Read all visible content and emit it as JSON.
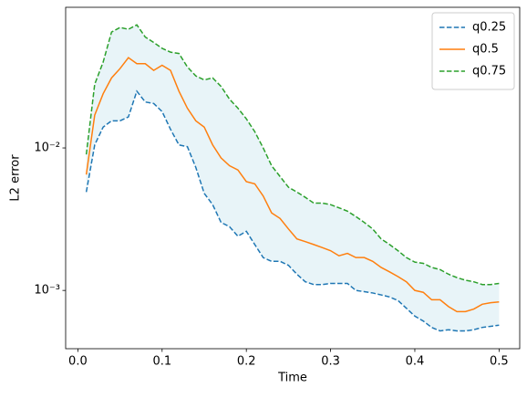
{
  "chart_data": {
    "type": "line",
    "xlabel": "Time",
    "ylabel": "L2 error",
    "x": [
      0.01,
      0.02,
      0.03,
      0.04,
      0.05,
      0.06,
      0.07,
      0.08,
      0.09,
      0.1,
      0.11,
      0.12,
      0.13,
      0.14,
      0.15,
      0.16,
      0.17,
      0.18,
      0.19,
      0.2,
      0.21,
      0.22,
      0.23,
      0.24,
      0.25,
      0.26,
      0.27,
      0.28,
      0.29,
      0.3,
      0.31,
      0.32,
      0.33,
      0.34,
      0.35,
      0.36,
      0.37,
      0.38,
      0.39,
      0.4,
      0.41,
      0.42,
      0.43,
      0.44,
      0.45,
      0.46,
      0.47,
      0.48,
      0.49,
      0.5
    ],
    "series": [
      {
        "name": "q0.25",
        "color": "#1f77b4",
        "linestyle": "dashed",
        "values": [
          0.0049,
          0.0105,
          0.014,
          0.0155,
          0.0155,
          0.0165,
          0.025,
          0.021,
          0.0205,
          0.018,
          0.0135,
          0.0105,
          0.0102,
          0.0073,
          0.0048,
          0.004,
          0.003,
          0.0028,
          0.0024,
          0.0026,
          0.0021,
          0.0017,
          0.0016,
          0.0016,
          0.0015,
          0.0013,
          0.00115,
          0.0011,
          0.0011,
          0.00112,
          0.00112,
          0.00112,
          0.001,
          0.00098,
          0.00096,
          0.00093,
          0.0009,
          0.00085,
          0.00075,
          0.00066,
          0.00061,
          0.00055,
          0.00052,
          0.00053,
          0.00052,
          0.00052,
          0.00053,
          0.00055,
          0.00056,
          0.00057
        ]
      },
      {
        "name": "q0.5",
        "color": "#ff7f0e",
        "linestyle": "solid",
        "values": [
          0.0065,
          0.017,
          0.024,
          0.031,
          0.036,
          0.043,
          0.039,
          0.039,
          0.035,
          0.038,
          0.035,
          0.025,
          0.019,
          0.0155,
          0.014,
          0.0105,
          0.0085,
          0.0075,
          0.007,
          0.0058,
          0.0056,
          0.0046,
          0.0035,
          0.0032,
          0.0027,
          0.0023,
          0.0022,
          0.0021,
          0.002,
          0.0019,
          0.00175,
          0.00182,
          0.0017,
          0.0017,
          0.0016,
          0.00145,
          0.00135,
          0.00125,
          0.00115,
          0.001,
          0.00097,
          0.00086,
          0.00086,
          0.00077,
          0.00071,
          0.00071,
          0.00074,
          0.0008,
          0.00082,
          0.00083
        ]
      },
      {
        "name": "q0.75",
        "color": "#2ca02c",
        "linestyle": "dashed",
        "values": [
          0.009,
          0.028,
          0.04,
          0.065,
          0.07,
          0.068,
          0.073,
          0.06,
          0.055,
          0.05,
          0.047,
          0.046,
          0.037,
          0.032,
          0.03,
          0.031,
          0.027,
          0.022,
          0.019,
          0.016,
          0.013,
          0.01,
          0.0075,
          0.0063,
          0.0053,
          0.0049,
          0.0045,
          0.0041,
          0.0041,
          0.004,
          0.0038,
          0.0036,
          0.0033,
          0.003,
          0.0027,
          0.0023,
          0.0021,
          0.0019,
          0.0017,
          0.00158,
          0.00155,
          0.00145,
          0.0014,
          0.0013,
          0.00123,
          0.00118,
          0.00115,
          0.0011,
          0.0011,
          0.00112
        ]
      }
    ],
    "band_color": "#e8f4f8",
    "xlim": [
      -0.0145,
      0.5245
    ],
    "xticks": [
      {
        "value": 0,
        "label": "0.0"
      },
      0.1,
      0.2,
      0.3,
      0.4,
      0.5
    ],
    "ylim": [
      0.00039,
      0.097
    ],
    "yscale": "log",
    "yticks": [
      {
        "value": 0.001,
        "label": "10⁻³"
      },
      {
        "value": 0.01,
        "label": "10⁻²"
      }
    ],
    "legend": "upper right"
  }
}
